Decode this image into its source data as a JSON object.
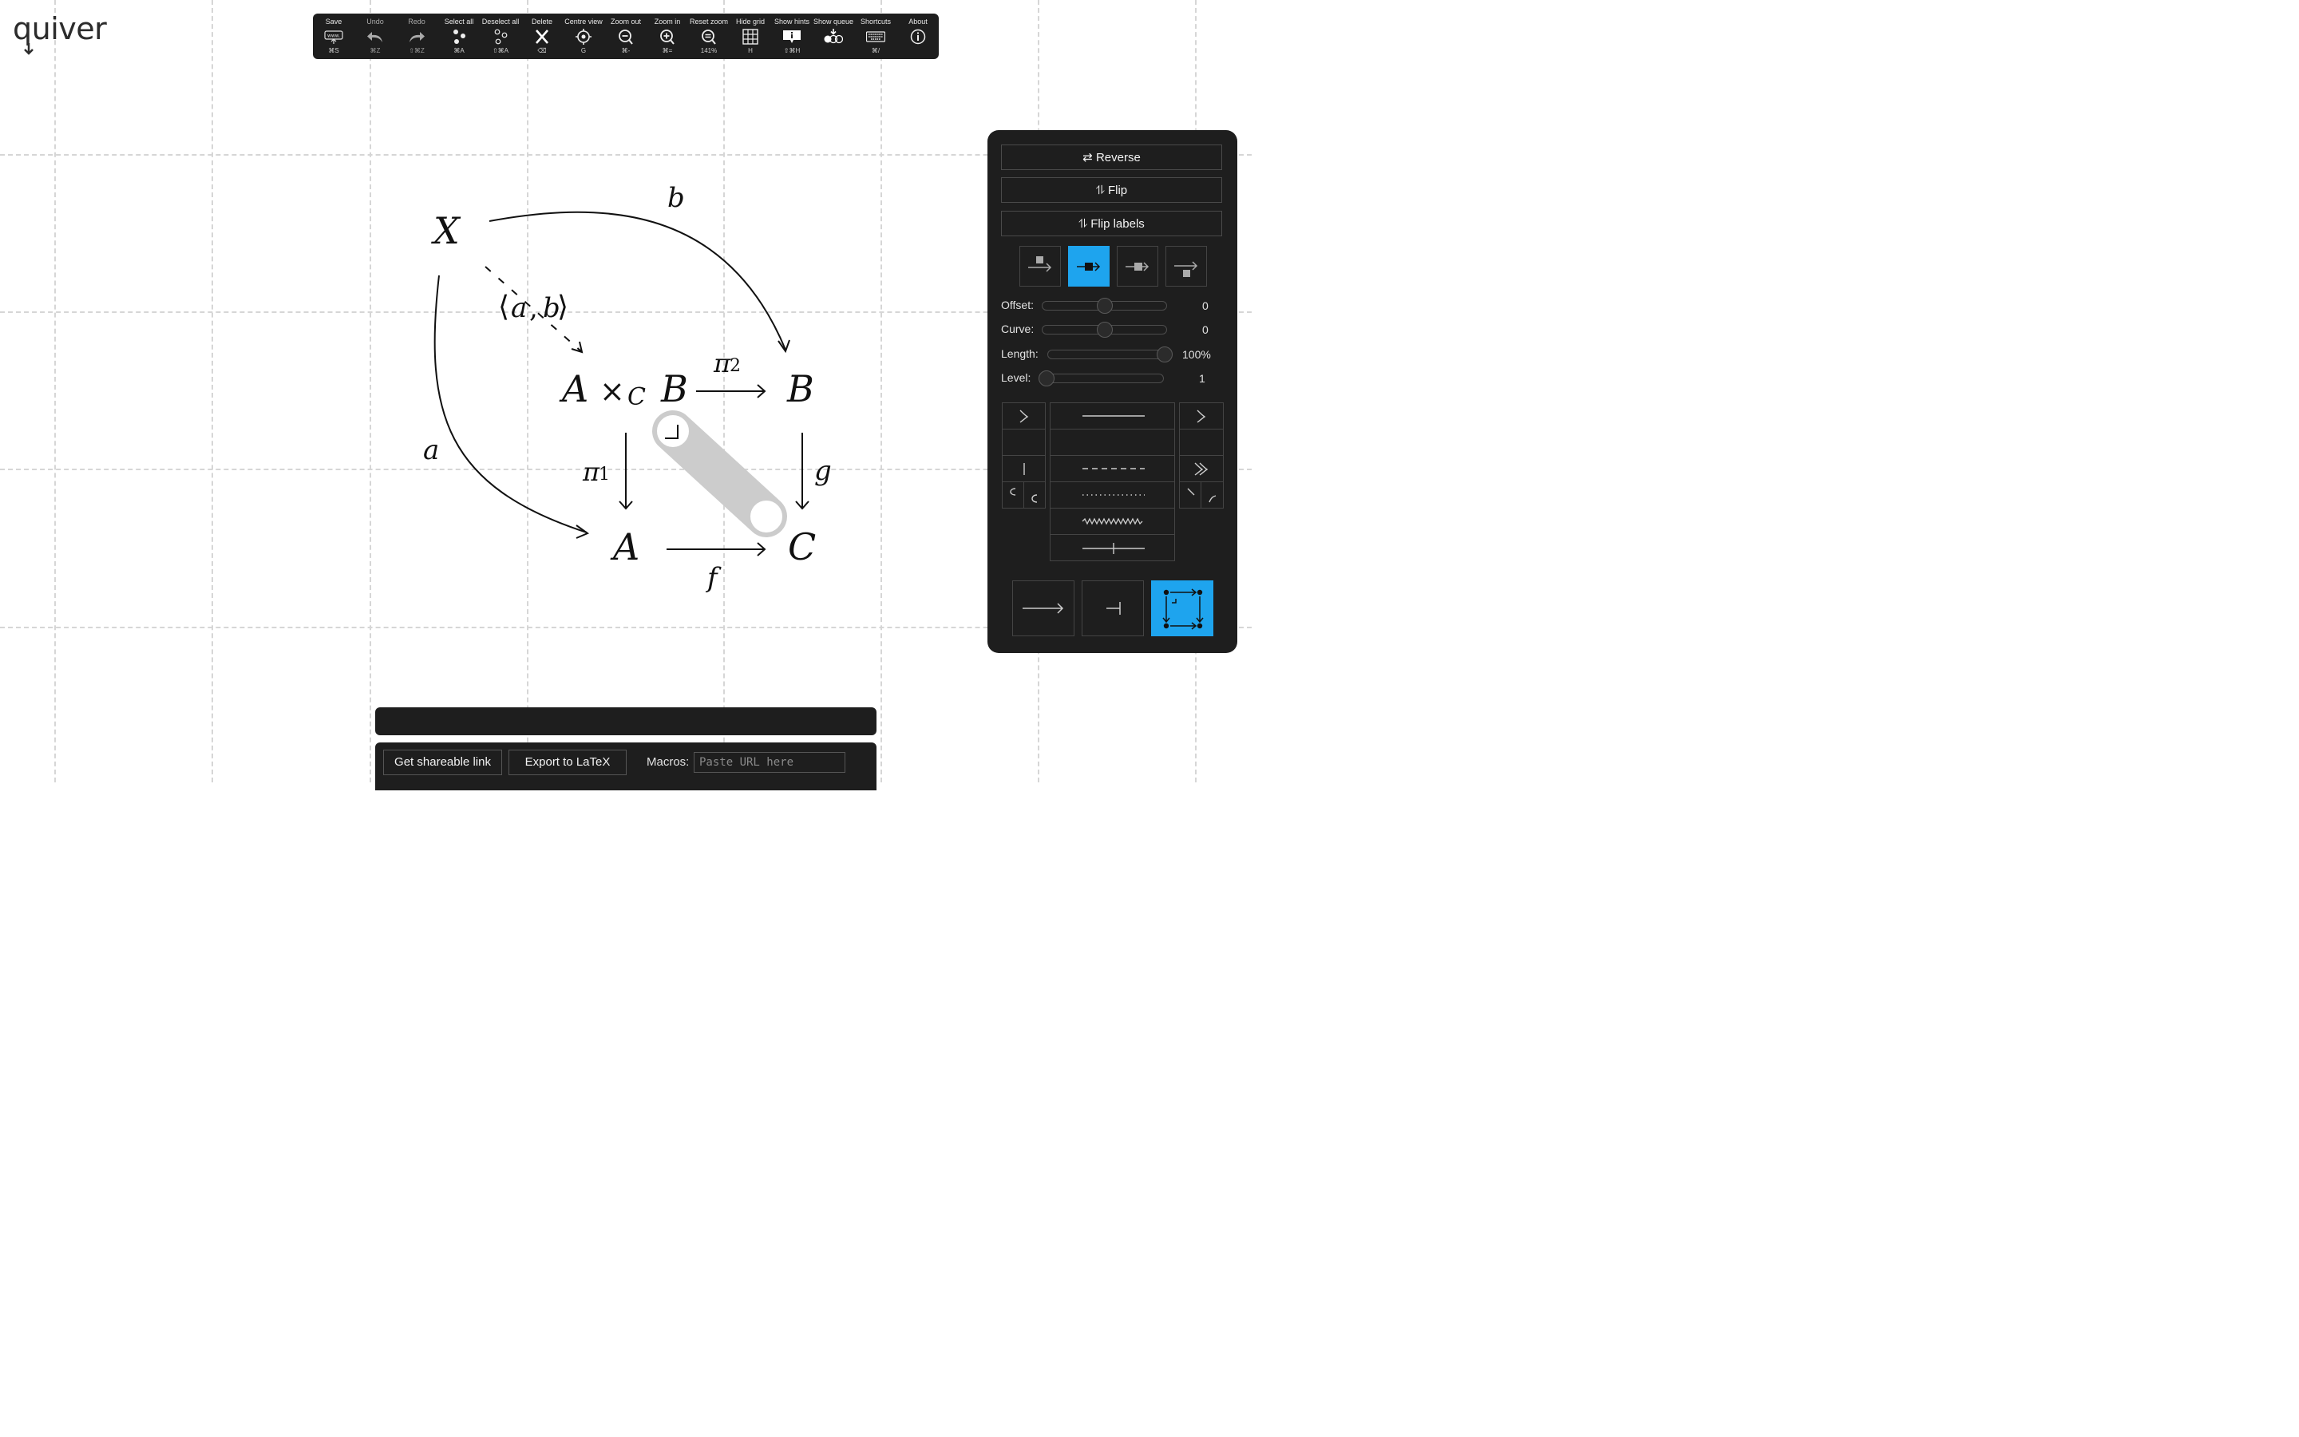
{
  "app": {
    "name": "quiver"
  },
  "toolbar": {
    "buttons": [
      {
        "label": "Save",
        "shortcut": "⌘S",
        "icon": "save-icon"
      },
      {
        "label": "Undo",
        "shortcut": "⌘Z",
        "icon": "undo-icon"
      },
      {
        "label": "Redo",
        "shortcut": "⇧⌘Z",
        "icon": "redo-icon"
      },
      {
        "label": "Select all",
        "shortcut": "⌘A",
        "icon": "select-all-icon"
      },
      {
        "label": "Deselect all",
        "shortcut": "⇧⌘A",
        "icon": "deselect-all-icon"
      },
      {
        "label": "Delete",
        "shortcut": "⌫",
        "icon": "delete-icon"
      },
      {
        "label": "Centre view",
        "shortcut": "G",
        "icon": "centre-view-icon"
      },
      {
        "label": "Zoom out",
        "shortcut": "⌘-",
        "icon": "zoom-out-icon"
      },
      {
        "label": "Zoom in",
        "shortcut": "⌘=",
        "icon": "zoom-in-icon"
      },
      {
        "label": "Reset zoom",
        "shortcut": "141%",
        "icon": "reset-zoom-icon"
      },
      {
        "label": "Hide grid",
        "shortcut": "H",
        "icon": "grid-icon"
      },
      {
        "label": "Show hints",
        "shortcut": "⇧⌘H",
        "icon": "hints-icon"
      },
      {
        "label": "Show queue",
        "shortcut": "",
        "icon": "queue-icon"
      },
      {
        "label": "Shortcuts",
        "shortcut": "⌘/",
        "icon": "keyboard-icon"
      },
      {
        "label": "About",
        "shortcut": "",
        "icon": "info-icon"
      }
    ],
    "save_icon_text": "www."
  },
  "diagram": {
    "objects": {
      "X": "X",
      "pullback_A": "A",
      "pullback_times": "×",
      "pullback_C": "C",
      "pullback_B": "B",
      "B": "B",
      "A": "A",
      "C": "C"
    },
    "labels": {
      "b": "b",
      "a": "a",
      "pair_open": "⟨",
      "pair_a": "a",
      "pair_comma": ",",
      "pair_b": "b",
      "pair_close": "⟩",
      "pi": "π",
      "pi2_sub": "2",
      "pi1_sub": "1",
      "g": "g",
      "f": "f"
    }
  },
  "panel": {
    "reverse": "⇄ Reverse",
    "flip": "⥮ Flip",
    "flip_labels": "⥮ Flip labels",
    "label_position_selected": 2,
    "sliders": [
      {
        "label": "Offset:",
        "value": "0",
        "fraction": 0.5
      },
      {
        "label": "Curve:",
        "value": "0",
        "fraction": 0.5
      },
      {
        "label": "Length:",
        "value": "100%",
        "fraction": 1.0
      },
      {
        "label": "Level:",
        "value": "1",
        "fraction": 0.0
      }
    ],
    "mode_selected": "pullback"
  },
  "bottom": {
    "shareable_link": "Get shareable link",
    "export_latex": "Export to LaTeX",
    "macros_label": "Macros:",
    "macros_placeholder": "Paste URL here"
  },
  "colors": {
    "accent": "#1ea4ee",
    "panel": "#1e1e1e",
    "grid": "#d6d6d6"
  }
}
